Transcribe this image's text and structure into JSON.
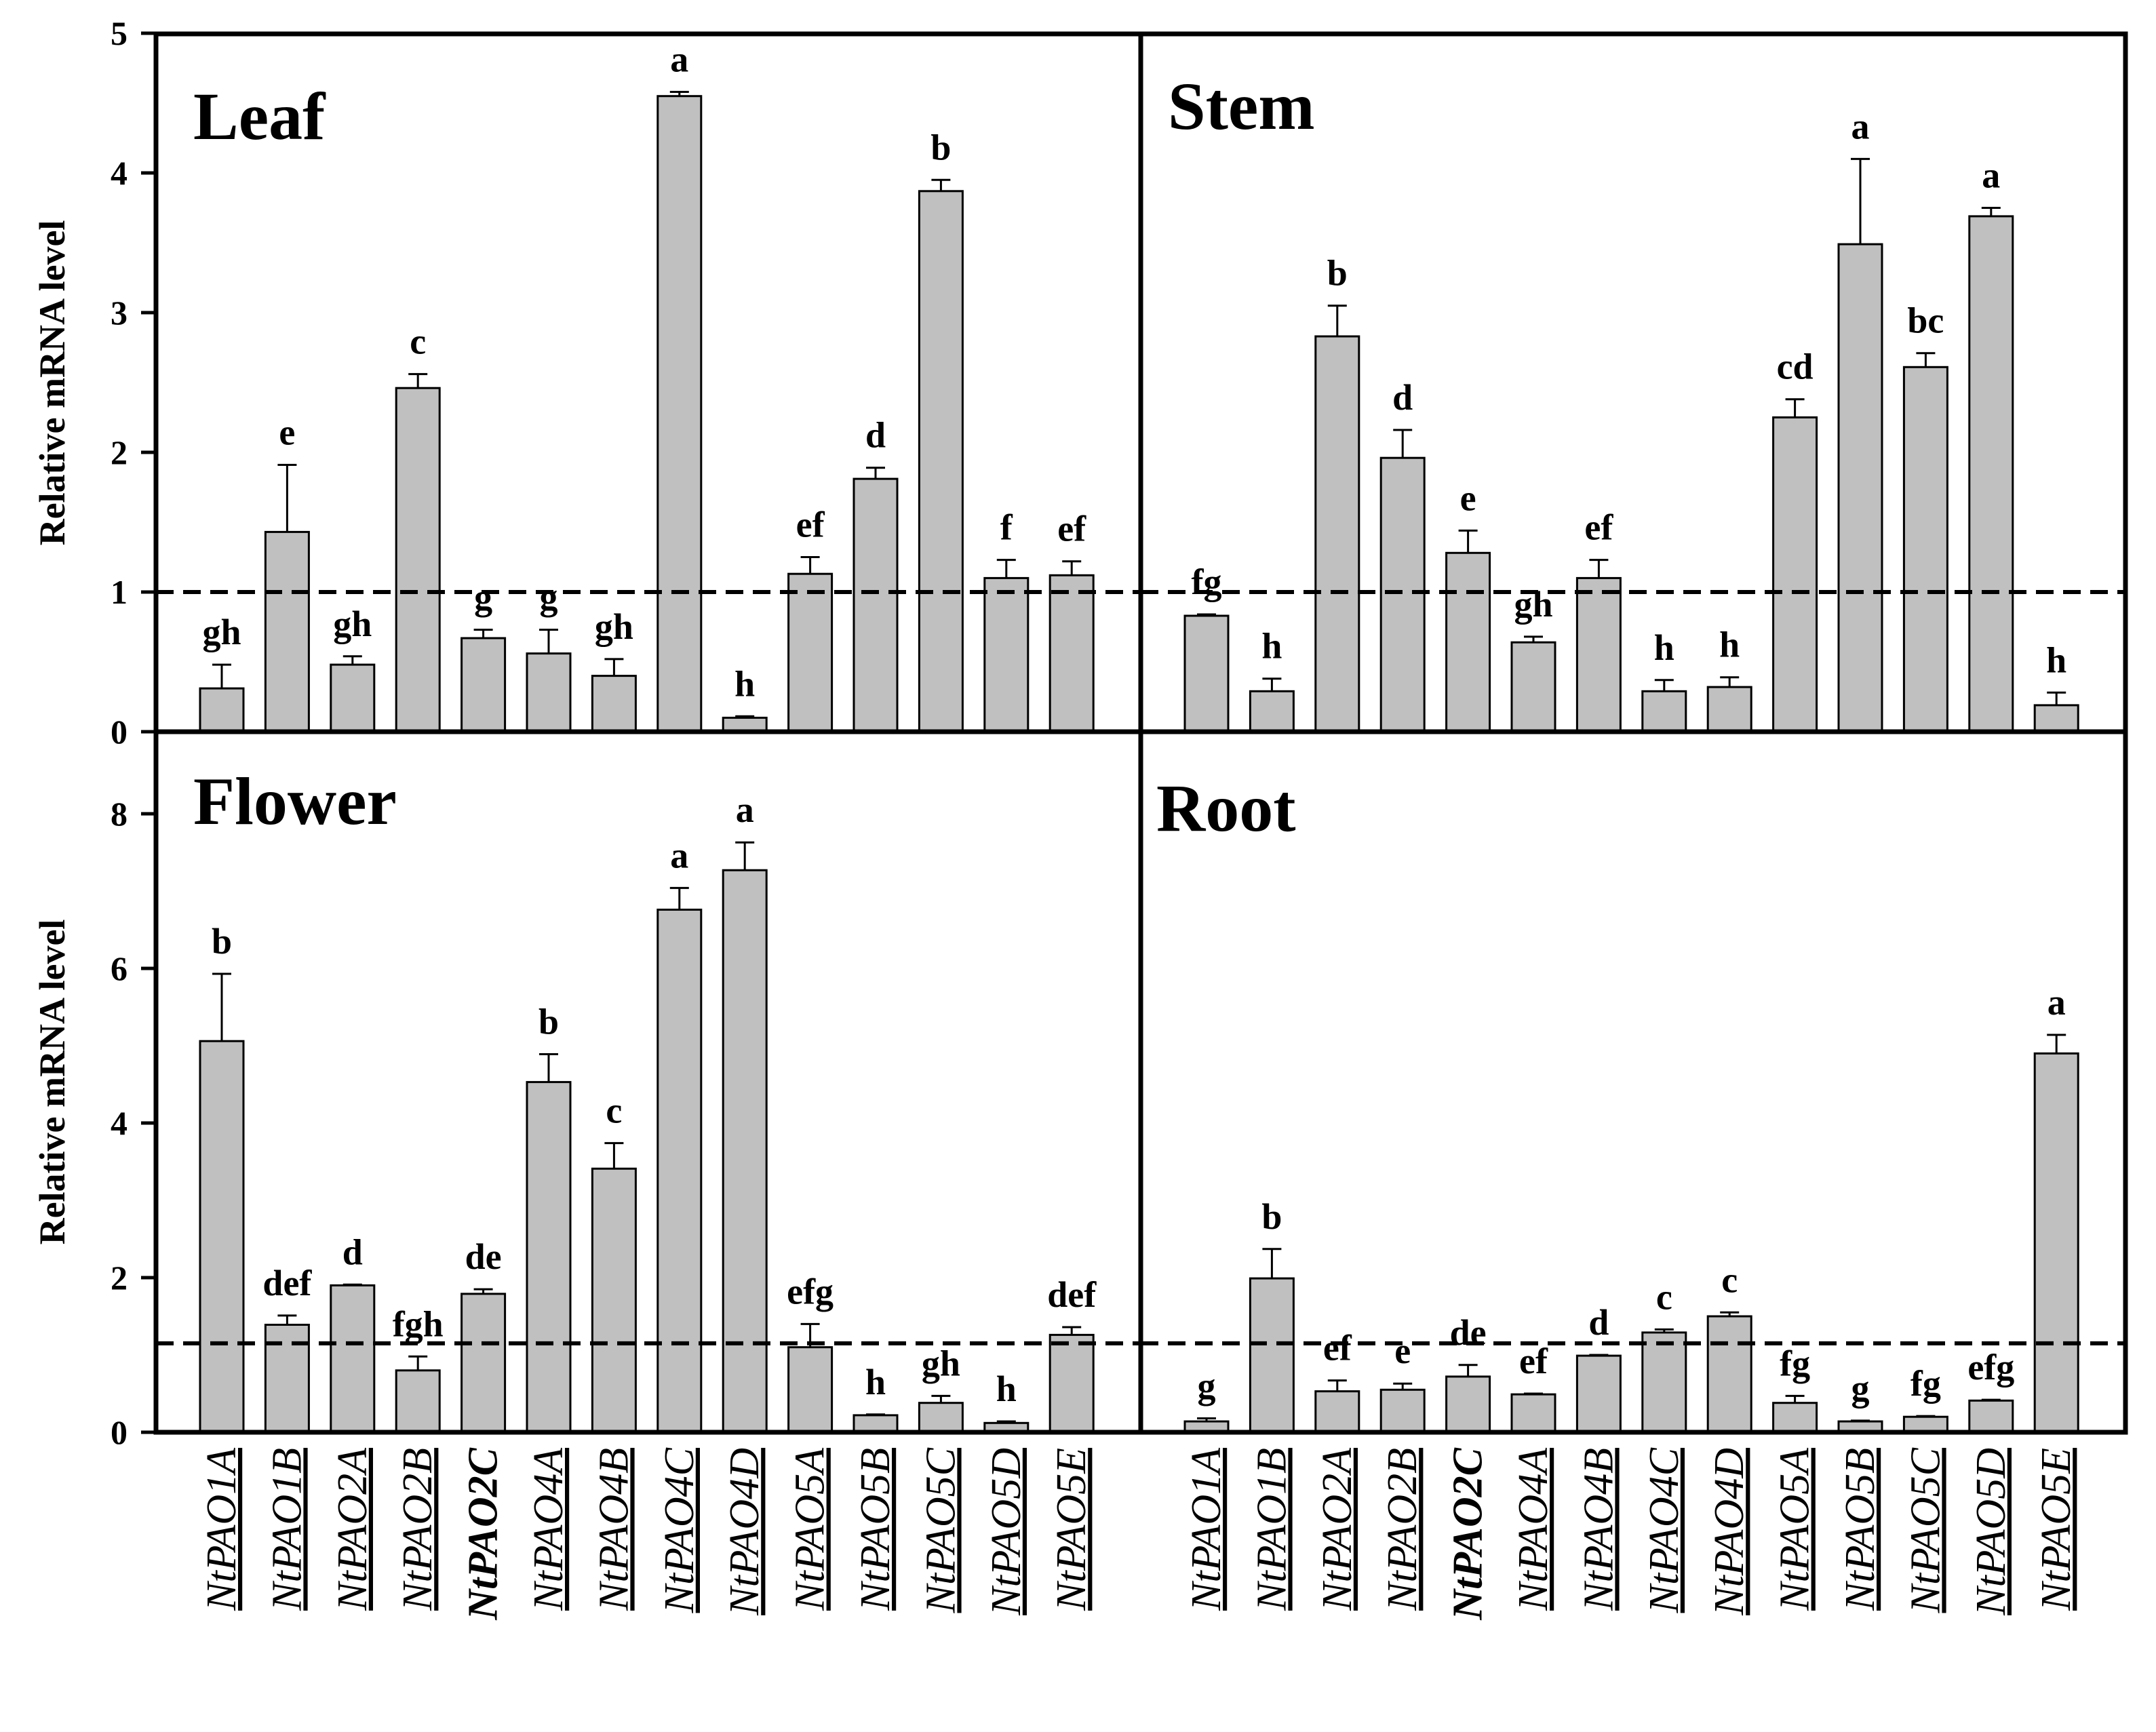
{
  "chart_data": [
    {
      "type": "bar",
      "title": "Leaf",
      "ylabel": "Relative mRNA level",
      "ylim": [
        0,
        5
      ],
      "yticks": [
        "0",
        "1",
        "2",
        "3",
        "4",
        "5"
      ],
      "categories": [
        "NtPAO1A",
        "NtPAO1B",
        "NtPAO2A",
        "NtPAO2B",
        "NtPAO2C",
        "NtPAO4A",
        "NtPAO4B",
        "NtPAO4C",
        "NtPAO4D",
        "NtPAO5A",
        "NtPAO5B",
        "NtPAO5C",
        "NtPAO5D",
        "NtPAO5E"
      ],
      "values": [
        0.31,
        1.43,
        0.48,
        2.46,
        0.67,
        0.56,
        0.4,
        4.55,
        0.1,
        1.13,
        1.81,
        3.87,
        1.1,
        1.12
      ],
      "errors": [
        0.17,
        0.48,
        0.06,
        0.1,
        0.06,
        0.17,
        0.12,
        0.03,
        0.01,
        0.12,
        0.08,
        0.08,
        0.13,
        0.1
      ],
      "labels": [
        "gh",
        "e",
        "gh",
        "c",
        "g",
        "g",
        "gh",
        "a",
        "h",
        "ef",
        "d",
        "b",
        "f",
        "ef"
      ],
      "reference_line": 1.0,
      "grid": false
    },
    {
      "type": "bar",
      "title": "Stem",
      "ylabel": "",
      "ylim": [
        0,
        5
      ],
      "categories": [
        "NtPAO1A",
        "NtPAO1B",
        "NtPAO2A",
        "NtPAO2B",
        "NtPAO2C",
        "NtPAO4A",
        "NtPAO4B",
        "NtPAO4C",
        "NtPAO4D",
        "NtPAO5A",
        "NtPAO5B",
        "NtPAO5C",
        "NtPAO5D",
        "NtPAO5E"
      ],
      "values": [
        0.83,
        0.29,
        2.83,
        1.96,
        1.28,
        0.64,
        1.1,
        0.29,
        0.32,
        2.25,
        3.49,
        2.61,
        3.69,
        0.19
      ],
      "errors": [
        0.01,
        0.09,
        0.22,
        0.2,
        0.16,
        0.04,
        0.13,
        0.08,
        0.07,
        0.13,
        0.61,
        0.1,
        0.06,
        0.09
      ],
      "labels": [
        "fg",
        "h",
        "b",
        "d",
        "e",
        "gh",
        "ef",
        "h",
        "h",
        "cd",
        "a",
        "bc",
        "a",
        "h"
      ],
      "reference_line": 1.0,
      "grid": false
    },
    {
      "type": "bar",
      "title": "Flower",
      "ylabel": "Relative mRNA level",
      "ylim": [
        0,
        9
      ],
      "yticks": [
        "0",
        "2",
        "4",
        "6",
        "8"
      ],
      "categories": [
        "NtPAO1A",
        "NtPAO1B",
        "NtPAO2A",
        "NtPAO2B",
        "NtPAO2C",
        "NtPAO4A",
        "NtPAO4B",
        "NtPAO4C",
        "NtPAO4D",
        "NtPAO5A",
        "NtPAO5B",
        "NtPAO5C",
        "NtPAO5D",
        "NtPAO5E"
      ],
      "values": [
        5.06,
        1.39,
        1.9,
        0.8,
        1.79,
        4.53,
        3.41,
        6.76,
        7.27,
        1.1,
        0.22,
        0.38,
        0.12,
        1.26
      ],
      "errors": [
        0.87,
        0.12,
        0.01,
        0.18,
        0.06,
        0.36,
        0.33,
        0.28,
        0.36,
        0.3,
        0.01,
        0.09,
        0.02,
        0.1
      ],
      "labels": [
        "b",
        "def",
        "d",
        "fgh",
        "de",
        "b",
        "c",
        "a",
        "a",
        "efg",
        "h",
        "gh",
        "h",
        "def"
      ],
      "reference_line": 1.15,
      "grid": false
    },
    {
      "type": "bar",
      "title": "Root",
      "ylabel": "",
      "ylim": [
        0,
        9
      ],
      "categories": [
        "NtPAO1A",
        "NtPAO1B",
        "NtPAO2A",
        "NtPAO2B",
        "NtPAO2C",
        "NtPAO4A",
        "NtPAO4B",
        "NtPAO4C",
        "NtPAO4D",
        "NtPAO5A",
        "NtPAO5B",
        "NtPAO5C",
        "NtPAO5D",
        "NtPAO5E"
      ],
      "values": [
        0.14,
        1.99,
        0.53,
        0.55,
        0.72,
        0.49,
        0.99,
        1.29,
        1.5,
        0.38,
        0.14,
        0.2,
        0.41,
        4.9
      ],
      "errors": [
        0.04,
        0.38,
        0.14,
        0.08,
        0.15,
        0.01,
        0.01,
        0.04,
        0.05,
        0.09,
        0.01,
        0.01,
        0.01,
        0.24
      ],
      "labels": [
        "g",
        "b",
        "ef",
        "e",
        "de",
        "ef",
        "d",
        "c",
        "c",
        "fg",
        "g",
        "fg",
        "efg",
        "a"
      ],
      "reference_line": 1.15,
      "grid": false
    }
  ],
  "x_axis_labels": {
    "genes": [
      "NtPAO1A",
      "NtPAO1B",
      "NtPAO2A",
      "NtPAO2B",
      "NtPAO2C",
      "NtPAO4A",
      "NtPAO4B",
      "NtPAO4C",
      "NtPAO4D",
      "NtPAO5A",
      "NtPAO5B",
      "NtPAO5C",
      "NtPAO5D",
      "NtPAO5E"
    ],
    "bold_gene": "NtPAO2C"
  },
  "colors": {
    "bar_fill": "#c0c0c0",
    "bar_stroke": "#000000",
    "background": "#ffffff"
  }
}
